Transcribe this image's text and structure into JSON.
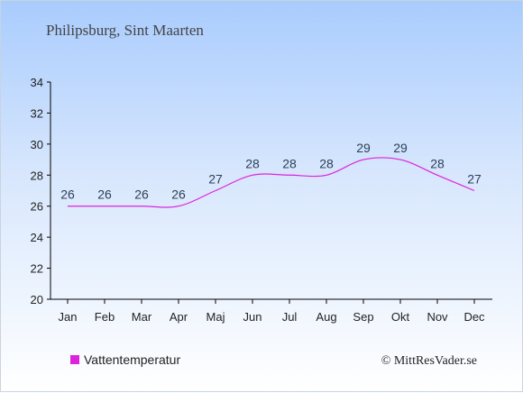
{
  "chart_data": {
    "type": "line",
    "title": "Philipsburg, Sint Maarten",
    "categories": [
      "Jan",
      "Feb",
      "Mar",
      "Apr",
      "Maj",
      "Jun",
      "Jul",
      "Aug",
      "Sep",
      "Okt",
      "Nov",
      "Dec"
    ],
    "series": [
      {
        "name": "Vattentemperatur",
        "values": [
          26,
          26,
          26,
          26,
          27,
          28,
          28,
          28,
          29,
          29,
          28,
          27
        ],
        "color": "#dd22dd"
      }
    ],
    "ylim": [
      20,
      34
    ],
    "yticks": [
      20,
      22,
      24,
      26,
      28,
      30,
      32,
      34
    ],
    "grid": false,
    "legend": "bottom-left"
  },
  "credit": "© MittResVader.se"
}
